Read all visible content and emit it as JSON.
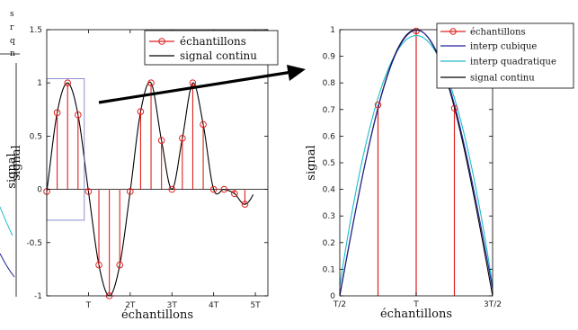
{
  "colors": {
    "stem": "#e0201e",
    "curve": "#000000",
    "cubic": "#23249c",
    "quadratic": "#20bcc8",
    "zoom_box": "#6f74c8",
    "arrow": "#000000"
  },
  "left_partial": {
    "legend_fragments": [
      "s",
      "r",
      "q",
      "n"
    ],
    "ylabel": "signal"
  },
  "chart_data": [
    {
      "type": "stem",
      "xlabel": "échantillons",
      "ylabel": "signal",
      "xlim": [
        0,
        5.3
      ],
      "ylim": [
        -1,
        1.5
      ],
      "x_ticks": [
        1,
        2,
        3,
        4,
        5
      ],
      "x_tick_labels": [
        "T",
        "2T",
        "3T",
        "4T",
        "5T"
      ],
      "y_ticks": [
        -1,
        -0.5,
        0,
        0.5,
        1,
        1.5
      ],
      "y_tick_labels": [
        "-1",
        "-0.5",
        "0",
        "0.5",
        "1",
        "1.5"
      ],
      "legend": {
        "position": "top-right",
        "entries": [
          "échantillons",
          "signal continu"
        ]
      },
      "series": [
        {
          "name": "échantillons",
          "marker": "circle-stem",
          "x": [
            0,
            0.25,
            0.5,
            0.75,
            1,
            1.25,
            1.5,
            1.75,
            2,
            2.25,
            2.5,
            2.75,
            3,
            3.25,
            3.5,
            3.75,
            4,
            4.25,
            4.5,
            4.75
          ],
          "y": [
            -0.02,
            0.72,
            1.0,
            0.7,
            -0.02,
            -0.71,
            -1.0,
            -0.71,
            -0.02,
            0.73,
            1.0,
            0.46,
            0.0,
            0.48,
            1.0,
            0.61,
            0.0,
            0.0,
            -0.04,
            -0.14
          ]
        },
        {
          "name": "signal continu",
          "line": "solid"
        }
      ]
    },
    {
      "type": "stem",
      "xlabel": "échantillons",
      "ylabel": "signal",
      "xlim": [
        0.5,
        1.5
      ],
      "ylim": [
        0,
        1
      ],
      "x_ticks": [
        0.5,
        1,
        1.5
      ],
      "x_tick_labels": [
        "T/2",
        "T",
        "3T/2"
      ],
      "y_ticks": [
        0,
        0.1,
        0.2,
        0.3,
        0.4,
        0.5,
        0.6,
        0.7,
        0.8,
        0.9,
        1
      ],
      "y_tick_labels": [
        "0",
        "0.1",
        "0.2",
        "0.3",
        "0.4",
        "0.5",
        "0.6",
        "0.7",
        "0.8",
        "0.9",
        "1"
      ],
      "legend": {
        "position": "top-right",
        "entries": [
          "échantillons",
          "interp cubique",
          "interp quadratique",
          "signal continu"
        ]
      },
      "series": [
        {
          "name": "échantillons",
          "marker": "circle-stem",
          "x": [
            0.5,
            0.75,
            1.0,
            1.25,
            1.5
          ],
          "y": [
            0.0,
            0.717,
            0.995,
            0.705,
            0.0
          ]
        },
        {
          "name": "interp cubique",
          "line": "solid"
        },
        {
          "name": "interp quadratique",
          "line": "solid"
        },
        {
          "name": "signal continu",
          "line": "solid"
        }
      ]
    }
  ]
}
